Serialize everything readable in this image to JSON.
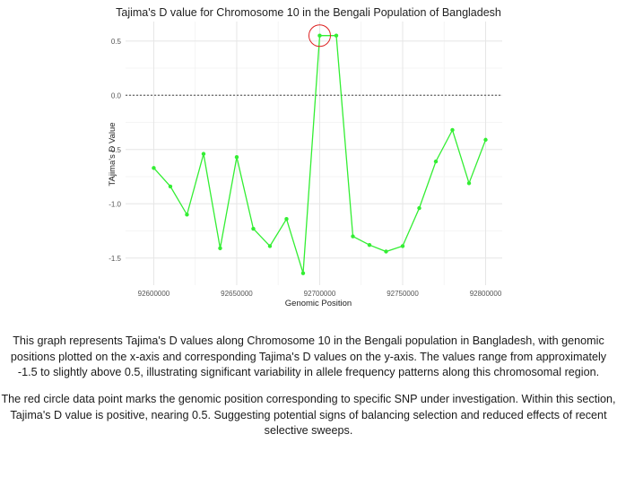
{
  "chart_data": {
    "type": "line",
    "title": "Tajima's D value for Chromosome 10 in the Bengali Population of Bangladesh",
    "xlabel": "Genomic Position",
    "ylabel": "TAjima's D Value",
    "xlim": [
      92583000,
      92810000
    ],
    "ylim": [
      -1.75,
      0.68
    ],
    "x_ticks": [
      92600000,
      92650000,
      92700000,
      92750000,
      92800000
    ],
    "x_tick_labels": [
      "92600000",
      "92650000",
      "92700000",
      "92750000",
      "92800000"
    ],
    "y_ticks": [
      0.5,
      0.0,
      -0.5,
      -1.0,
      -1.5
    ],
    "y_tick_labels": [
      "0.5",
      "0.0",
      "-0.5",
      "-1.0",
      "-1.5"
    ],
    "reference_line": 0.0,
    "grid": true,
    "line_color": "#33ee33",
    "highlight_color": "#dd2222",
    "highlight_index": 10,
    "series": [
      {
        "x": [
          92600000,
          92610000,
          92620000,
          92630000,
          92640000,
          92650000,
          92660000,
          92670000,
          92680000,
          92690000,
          92700000,
          92710000,
          92720000,
          92730000,
          92740000,
          92750000,
          92760000,
          92770000,
          92780000,
          92790000,
          92800000
        ],
        "y": [
          -0.67,
          -0.84,
          -1.1,
          -0.54,
          -1.41,
          -0.57,
          -1.23,
          -1.39,
          -1.14,
          -1.64,
          0.55,
          0.55,
          -1.3,
          -1.38,
          -1.44,
          -1.39,
          -1.04,
          -0.61,
          -0.32,
          -0.81,
          -0.41
        ]
      }
    ]
  },
  "caption": {
    "paragraph1": "This graph represents Tajima's D values along Chromosome 10 in the Bengali population in Bangladesh, with genomic positions plotted on the x-axis and corresponding Tajima's D values on the y-axis. The values range from approximately -1.5 to slightly above 0.5, illustrating significant variability in allele frequency patterns along this chromosomal region.",
    "paragraph2": "The red circle data point marks the genomic position corresponding to specific SNP under investigation. Within this section, Tajima's D value is positive, nearing 0.5. Suggesting potential signs of balancing selection and reduced effects of recent selective sweeps."
  }
}
